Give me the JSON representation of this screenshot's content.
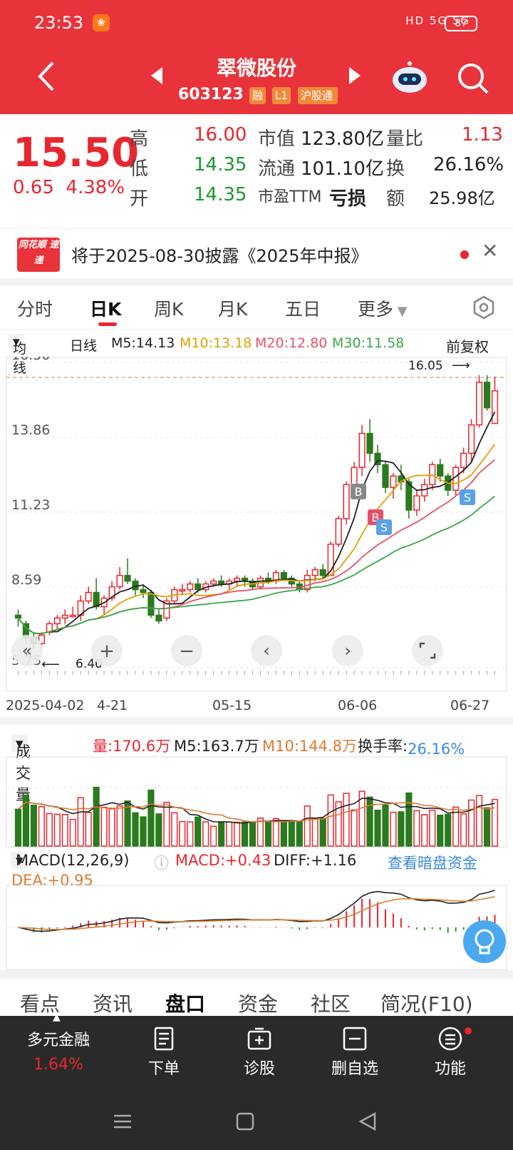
{
  "status_bar": {
    "time": "23:53",
    "network": "HD 5G 5G",
    "battery": "87"
  },
  "header": {
    "title": "翠微股份",
    "code": "603123",
    "tags": [
      "融",
      "L1",
      "沪股通"
    ]
  },
  "quote": {
    "price": "15.50",
    "change": "0.65",
    "change_pct": "4.38%",
    "high_label": "高",
    "high": "16.00",
    "low_label": "低",
    "low": "14.35",
    "open_label": "开",
    "open": "14.35",
    "mktcap_label": "市值",
    "mktcap": "123.80亿",
    "float_label": "流通",
    "float": "101.10亿",
    "pe_label": "市盈TTM",
    "pe": "亏损",
    "vr_label": "量比",
    "vr": "1.13",
    "turnover_label": "换",
    "turnover": "26.16%",
    "amount_label": "额",
    "amount": "25.98亿"
  },
  "notice": {
    "logo": "同花顺 速递",
    "text": "将于2025-08-30披露《2025年中报》"
  },
  "chart_tabs": [
    "分时",
    "日K",
    "周K",
    "月K",
    "五日",
    "更多"
  ],
  "ma_legend": {
    "selector": "均线",
    "period": "日线",
    "m5": "M5:14.13",
    "m10": "M10:13.18",
    "m20": "M20:12.80",
    "m30": "M30:11.58",
    "adjust": "前复权"
  },
  "kline_labels": {
    "max": "16.05",
    "min": "6.40"
  },
  "dates": [
    "2025-04-02",
    "4-21",
    "05-15",
    "06-06",
    "06-27"
  ],
  "volume_legend": {
    "selector": "成交量",
    "vol": "量:170.6万",
    "m5": "M5:163.7万",
    "m10": "M10:144.8万",
    "turnover": "换手率:26.16%"
  },
  "macd_legend": {
    "selector": "MACD(12,26,9)",
    "macd": "MACD:+0.43",
    "diff": "DIFF:+1.16",
    "dea": "DEA:+0.95",
    "link": "查看暗盘资金"
  },
  "subtabs": [
    "看点",
    "资讯",
    "盘口",
    "资金",
    "社区",
    "简况(F10)"
  ],
  "bottom_nav": {
    "multi": "多元金融",
    "multi_pct": "1.64%",
    "order": "下单",
    "diag": "诊股",
    "remove": "删自选",
    "func": "功能"
  },
  "chart_data": {
    "type": "candlestick",
    "yticks": [
      "16.50",
      "13.86",
      "11.23",
      "8.59",
      "5.75"
    ],
    "ylim": [
      5.75,
      16.5
    ],
    "candles": [
      [
        7.6,
        7.8,
        7.2,
        7.5
      ],
      [
        7.3,
        7.4,
        6.6,
        6.8
      ],
      [
        6.8,
        7.0,
        6.4,
        6.6
      ],
      [
        6.6,
        7.0,
        6.4,
        6.9
      ],
      [
        7.0,
        7.4,
        6.9,
        7.3
      ],
      [
        7.3,
        7.6,
        7.1,
        7.5
      ],
      [
        7.5,
        7.8,
        7.3,
        7.6
      ],
      [
        7.6,
        7.9,
        7.5,
        7.6
      ],
      [
        7.6,
        8.3,
        7.4,
        8.1
      ],
      [
        8.1,
        8.6,
        8.0,
        8.4
      ],
      [
        8.4,
        8.9,
        7.8,
        7.9
      ],
      [
        7.9,
        8.3,
        7.6,
        8.2
      ],
      [
        8.2,
        8.8,
        8.1,
        8.6
      ],
      [
        8.6,
        9.3,
        8.5,
        9.0
      ],
      [
        9.0,
        9.6,
        8.7,
        8.8
      ],
      [
        8.8,
        8.9,
        8.3,
        8.5
      ],
      [
        8.5,
        8.7,
        8.2,
        8.4
      ],
      [
        8.4,
        8.5,
        7.5,
        7.6
      ],
      [
        7.6,
        7.8,
        7.3,
        7.4
      ],
      [
        7.5,
        8.2,
        7.4,
        8.1
      ],
      [
        8.1,
        8.6,
        8.0,
        8.5
      ],
      [
        8.5,
        8.7,
        8.3,
        8.5
      ],
      [
        8.5,
        8.8,
        8.4,
        8.7
      ],
      [
        8.7,
        8.9,
        8.4,
        8.5
      ],
      [
        8.5,
        8.8,
        8.4,
        8.7
      ],
      [
        8.7,
        8.9,
        8.6,
        8.8
      ],
      [
        8.8,
        9.0,
        8.6,
        8.7
      ],
      [
        8.7,
        8.9,
        8.5,
        8.8
      ],
      [
        8.8,
        9.0,
        8.6,
        8.9
      ],
      [
        8.9,
        9.0,
        8.6,
        8.8
      ],
      [
        8.8,
        8.9,
        8.5,
        8.6
      ],
      [
        8.6,
        9.0,
        8.5,
        8.9
      ],
      [
        8.9,
        9.1,
        8.7,
        8.8
      ],
      [
        8.8,
        9.2,
        8.7,
        9.1
      ],
      [
        9.1,
        9.2,
        8.8,
        8.9
      ],
      [
        8.9,
        9.0,
        8.6,
        8.7
      ],
      [
        8.7,
        8.8,
        8.4,
        8.5
      ],
      [
        8.5,
        9.2,
        8.4,
        9.0
      ],
      [
        9.0,
        9.3,
        8.8,
        9.2
      ],
      [
        9.2,
        9.4,
        8.9,
        9.0
      ],
      [
        9.0,
        10.2,
        9.0,
        10.1
      ],
      [
        10.1,
        11.1,
        10.0,
        11.0
      ],
      [
        11.0,
        12.3,
        10.8,
        12.2
      ],
      [
        12.2,
        13.0,
        12.0,
        12.8
      ],
      [
        12.8,
        14.3,
        12.5,
        14.0
      ],
      [
        14.0,
        14.5,
        13.0,
        13.3
      ],
      [
        13.3,
        13.6,
        12.6,
        12.9
      ],
      [
        12.9,
        13.0,
        11.9,
        12.1
      ],
      [
        12.1,
        12.6,
        11.7,
        12.5
      ],
      [
        12.5,
        12.9,
        12.0,
        12.3
      ],
      [
        12.3,
        12.4,
        11.0,
        11.3
      ],
      [
        11.3,
        12.0,
        11.1,
        11.8
      ],
      [
        11.8,
        12.4,
        11.6,
        12.2
      ],
      [
        12.2,
        13.0,
        12.0,
        12.9
      ],
      [
        12.9,
        13.1,
        12.3,
        12.5
      ],
      [
        12.5,
        12.6,
        11.8,
        12.0
      ],
      [
        12.0,
        12.9,
        11.8,
        12.8
      ],
      [
        12.8,
        13.5,
        12.6,
        13.3
      ],
      [
        13.3,
        14.5,
        13.0,
        14.3
      ],
      [
        14.3,
        16.05,
        14.2,
        15.8
      ],
      [
        15.8,
        16.05,
        14.8,
        14.9
      ],
      [
        14.35,
        16.0,
        14.35,
        15.5
      ]
    ]
  }
}
